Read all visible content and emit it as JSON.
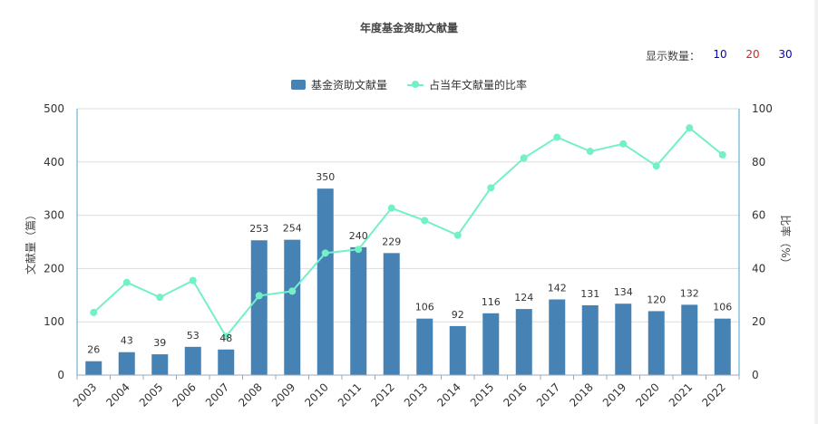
{
  "header": {
    "title": "年度基金资助文献量",
    "count_label": "显示数量：",
    "count_options": [
      {
        "label": "10",
        "color": "#0000cc"
      },
      {
        "label": "20",
        "color": "#e02020"
      },
      {
        "label": "30",
        "color": "#0000cc"
      }
    ]
  },
  "legend": {
    "bar_series": "基金资助文献量",
    "line_series": "占当年文献量的比率"
  },
  "colors": {
    "bar": "#4682b4",
    "line": "#74f0c8",
    "axis": "#4aa3c8",
    "grid": "#dddddd"
  },
  "chart_data": {
    "type": "bar",
    "title": "年度基金资助文献量",
    "categories": [
      "2003",
      "2004",
      "2005",
      "2006",
      "2007",
      "2008",
      "2009",
      "2010",
      "2011",
      "2012",
      "2013",
      "2014",
      "2015",
      "2016",
      "2017",
      "2018",
      "2019",
      "2020",
      "2021",
      "2022"
    ],
    "series": [
      {
        "name": "基金资助文献量",
        "type": "bar",
        "axis": "left",
        "values": [
          26,
          43,
          39,
          53,
          48,
          253,
          254,
          350,
          240,
          229,
          106,
          92,
          116,
          124,
          142,
          131,
          134,
          120,
          132,
          106
        ]
      },
      {
        "name": "占当年文献量的比率",
        "type": "line",
        "axis": "right",
        "values": [
          23.5,
          34.8,
          29.2,
          35.5,
          14.5,
          29.8,
          31.5,
          45.8,
          47.2,
          62.7,
          58.0,
          52.5,
          70.3,
          81.5,
          89.3,
          84.0,
          86.8,
          78.5,
          92.8,
          82.7
        ]
      }
    ],
    "ylabel": "文献量（篇）",
    "ylim": [
      0,
      500
    ],
    "yticks": [
      0,
      100,
      200,
      300,
      400,
      500
    ],
    "y2label": "比率（%）",
    "y2lim": [
      0,
      100
    ],
    "y2ticks": [
      0,
      20,
      40,
      60,
      80,
      100
    ],
    "grid": true,
    "legend_position": "top-center"
  }
}
